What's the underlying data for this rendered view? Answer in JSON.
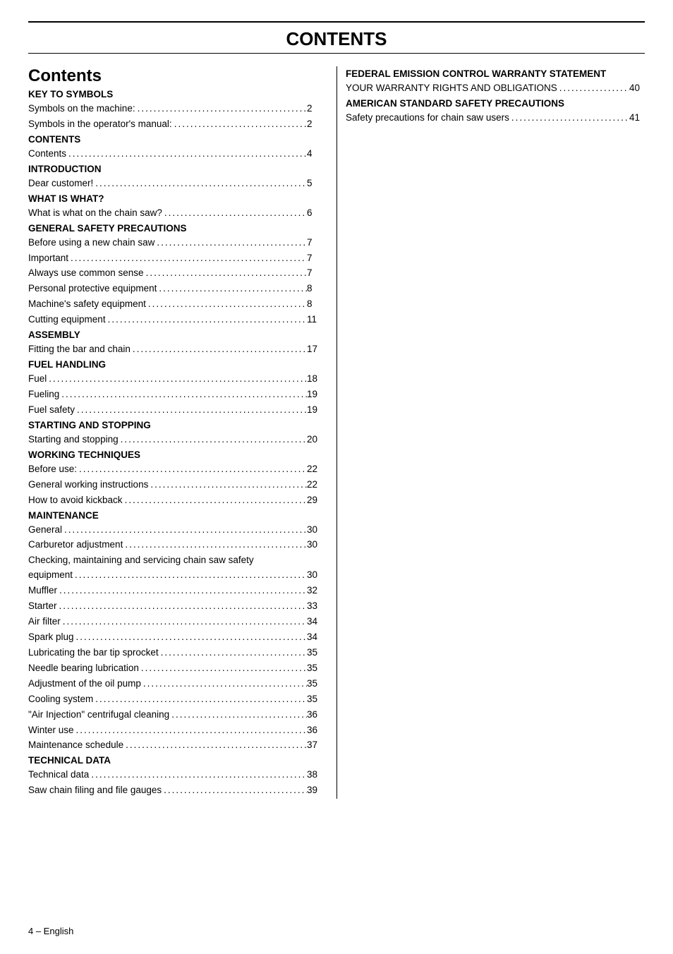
{
  "page_title": "CONTENTS",
  "section_heading": "Contents",
  "footer": "4 – English",
  "left_column": [
    {
      "type": "group",
      "text": "KEY TO SYMBOLS"
    },
    {
      "type": "item",
      "label": "Symbols on the machine:",
      "page": "2"
    },
    {
      "type": "item",
      "label": "Symbols in the operator's manual:",
      "page": "2"
    },
    {
      "type": "group",
      "text": "CONTENTS"
    },
    {
      "type": "item",
      "label": "Contents",
      "page": "4"
    },
    {
      "type": "group",
      "text": "INTRODUCTION"
    },
    {
      "type": "item",
      "label": "Dear customer!",
      "page": "5"
    },
    {
      "type": "group",
      "text": "WHAT IS WHAT?"
    },
    {
      "type": "item",
      "label": "What is what on the chain saw?",
      "page": "6"
    },
    {
      "type": "group",
      "text": "GENERAL SAFETY PRECAUTIONS"
    },
    {
      "type": "item",
      "label": "Before using a new chain saw",
      "page": "7"
    },
    {
      "type": "item",
      "label": "Important",
      "page": "7"
    },
    {
      "type": "item",
      "label": "Always use common sense",
      "page": "7"
    },
    {
      "type": "item",
      "label": "Personal protective equipment",
      "page": "8"
    },
    {
      "type": "item",
      "label": "Machine's safety equipment",
      "page": "8"
    },
    {
      "type": "item",
      "label": "Cutting equipment",
      "page": "11"
    },
    {
      "type": "group",
      "text": "ASSEMBLY"
    },
    {
      "type": "item",
      "label": "Fitting the bar and chain",
      "page": "17"
    },
    {
      "type": "group",
      "text": "FUEL HANDLING"
    },
    {
      "type": "item",
      "label": "Fuel",
      "page": "18"
    },
    {
      "type": "item",
      "label": "Fueling",
      "page": "19"
    },
    {
      "type": "item",
      "label": "Fuel safety",
      "page": "19"
    },
    {
      "type": "group",
      "text": "STARTING AND STOPPING"
    },
    {
      "type": "item",
      "label": "Starting and stopping",
      "page": "20"
    },
    {
      "type": "group",
      "text": "WORKING TECHNIQUES"
    },
    {
      "type": "item",
      "label": "Before use:",
      "page": "22"
    },
    {
      "type": "item",
      "label": "General working instructions",
      "page": "22"
    },
    {
      "type": "item",
      "label": "How to avoid kickback",
      "page": "29"
    },
    {
      "type": "group",
      "text": "MAINTENANCE"
    },
    {
      "type": "item",
      "label": "General",
      "page": "30"
    },
    {
      "type": "item",
      "label": "Carburetor adjustment",
      "page": "30"
    },
    {
      "type": "item-wrap",
      "label": "Checking, maintaining and servicing chain saw safety equipment",
      "page": "30"
    },
    {
      "type": "item",
      "label": "Muffler",
      "page": "32"
    },
    {
      "type": "item",
      "label": "Starter",
      "page": "33"
    },
    {
      "type": "item",
      "label": "Air filter",
      "page": "34"
    },
    {
      "type": "item",
      "label": "Spark plug",
      "page": "34"
    },
    {
      "type": "item",
      "label": "Lubricating the bar tip sprocket",
      "page": "35"
    },
    {
      "type": "item",
      "label": "Needle bearing lubrication",
      "page": "35"
    },
    {
      "type": "item",
      "label": "Adjustment of the oil pump",
      "page": "35"
    },
    {
      "type": "item",
      "label": "Cooling system",
      "page": "35"
    },
    {
      "type": "item",
      "label": "\"Air Injection\" centrifugal cleaning",
      "page": "36"
    },
    {
      "type": "item",
      "label": "Winter use",
      "page": "36"
    },
    {
      "type": "item",
      "label": "Maintenance schedule",
      "page": "37"
    },
    {
      "type": "group",
      "text": "TECHNICAL DATA"
    },
    {
      "type": "item",
      "label": "Technical data",
      "page": "38"
    },
    {
      "type": "item",
      "label": "Saw chain filing and file gauges",
      "page": "39"
    }
  ],
  "right_column": [
    {
      "type": "group-wrap",
      "text": "FEDERAL EMISSION CONTROL WARRANTY STATEMENT"
    },
    {
      "type": "item",
      "label": "YOUR WARRANTY RIGHTS AND OBLIGATIONS",
      "page": "40"
    },
    {
      "type": "group",
      "text": "AMERICAN STANDARD SAFETY PRECAUTIONS"
    },
    {
      "type": "item",
      "label": "Safety precautions for chain saw users",
      "page": "41"
    }
  ]
}
